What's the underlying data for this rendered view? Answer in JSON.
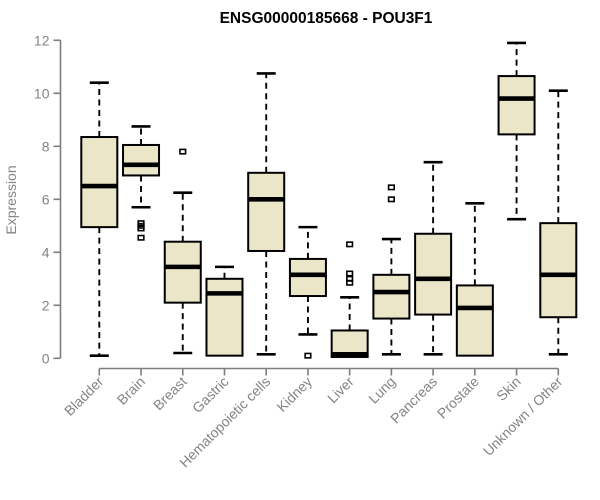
{
  "title": "ENSG00000185668 - POU3F1",
  "colors": {
    "background": "#ffffff",
    "box_fill": "#ece6c9",
    "box_stroke": "#000000",
    "median": "#000000",
    "whisker": "#000000",
    "axis": "#7e7e7e",
    "tick_label": "#848484",
    "title": "#000000"
  },
  "chart_data": {
    "type": "boxplot",
    "title": "ENSG00000185668 - POU3F1",
    "xlabel": "",
    "ylabel": "Expression",
    "ylim": [
      0,
      12
    ],
    "yticks": [
      0,
      2,
      4,
      6,
      8,
      10,
      12
    ],
    "grid": false,
    "legend": "none",
    "categories": [
      "Bladder",
      "Brain",
      "Breast",
      "Gastric",
      "Hematopoietic cells",
      "Kidney",
      "Liver",
      "Lung",
      "Pancreas",
      "Prostate",
      "Skin",
      "Unknown / Other"
    ],
    "series": [
      {
        "name": "Bladder",
        "whisker_low": 0.1,
        "q1": 4.95,
        "median": 6.5,
        "q3": 8.35,
        "whisker_high": 10.4,
        "outliers": []
      },
      {
        "name": "Brain",
        "whisker_low": 5.7,
        "q1": 6.9,
        "median": 7.3,
        "q3": 8.05,
        "whisker_high": 8.75,
        "outliers": [
          5.1,
          5.0,
          4.9,
          4.55
        ]
      },
      {
        "name": "Breast",
        "whisker_low": 0.2,
        "q1": 2.1,
        "median": 3.45,
        "q3": 4.4,
        "whisker_high": 6.25,
        "outliers": [
          7.8
        ]
      },
      {
        "name": "Gastric",
        "whisker_low": 0.1,
        "q1": 0.1,
        "median": 2.45,
        "q3": 3.0,
        "whisker_high": 3.45,
        "outliers": []
      },
      {
        "name": "Hematopoietic cells",
        "whisker_low": 0.15,
        "q1": 4.05,
        "median": 6.0,
        "q3": 7.0,
        "whisker_high": 10.75,
        "outliers": []
      },
      {
        "name": "Kidney",
        "whisker_low": 0.9,
        "q1": 2.35,
        "median": 3.15,
        "q3": 3.75,
        "whisker_high": 4.95,
        "outliers": [
          0.1
        ]
      },
      {
        "name": "Liver",
        "whisker_low": 0.05,
        "q1": 0.05,
        "median": 0.15,
        "q3": 1.05,
        "whisker_high": 2.3,
        "outliers": [
          4.3,
          3.2,
          3.0,
          2.85
        ]
      },
      {
        "name": "Lung",
        "whisker_low": 0.15,
        "q1": 1.5,
        "median": 2.5,
        "q3": 3.15,
        "whisker_high": 4.5,
        "outliers": [
          6.45,
          6.0
        ]
      },
      {
        "name": "Pancreas",
        "whisker_low": 0.15,
        "q1": 1.65,
        "median": 3.0,
        "q3": 4.7,
        "whisker_high": 7.4,
        "outliers": []
      },
      {
        "name": "Prostate",
        "whisker_low": 0.1,
        "q1": 0.1,
        "median": 1.9,
        "q3": 2.75,
        "whisker_high": 5.85,
        "outliers": []
      },
      {
        "name": "Skin",
        "whisker_low": 5.25,
        "q1": 8.45,
        "median": 9.8,
        "q3": 10.65,
        "whisker_high": 11.9,
        "outliers": []
      },
      {
        "name": "Unknown / Other",
        "whisker_low": 0.15,
        "q1": 1.55,
        "median": 3.15,
        "q3": 5.1,
        "whisker_high": 10.1,
        "outliers": []
      }
    ]
  }
}
